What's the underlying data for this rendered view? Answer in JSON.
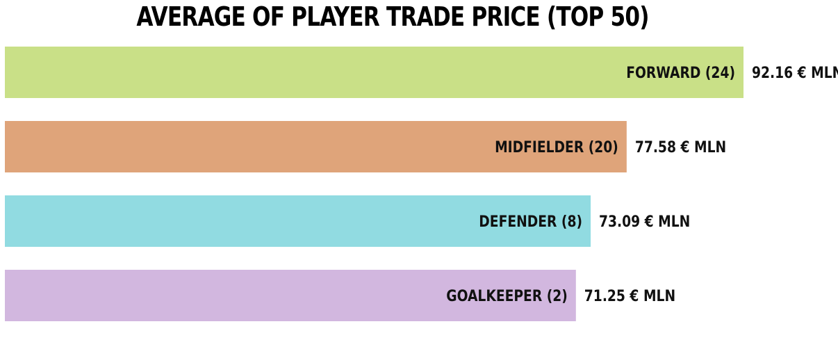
{
  "chart_data": {
    "type": "bar",
    "orientation": "horizontal",
    "title": "AVERAGE OF PLAYER TRADE PRICE (TOP 50)",
    "categories": [
      "FORWARD (24)",
      "MIDFIELDER (20)",
      "DEFENDER (8)",
      "GOALKEEPER (2)"
    ],
    "values": [
      92.16,
      77.58,
      73.09,
      71.25
    ],
    "value_labels": [
      "92.16 € MLN",
      "77.58 € MLN",
      "73.09 € MLN",
      "71.25 € MLN"
    ],
    "colors": [
      "#c9e087",
      "#dfa47a",
      "#91dbe1",
      "#d2b7df"
    ],
    "xlabel": "",
    "ylabel": "",
    "xlim": [
      0,
      92.16
    ],
    "grid": false,
    "legend": "none"
  }
}
